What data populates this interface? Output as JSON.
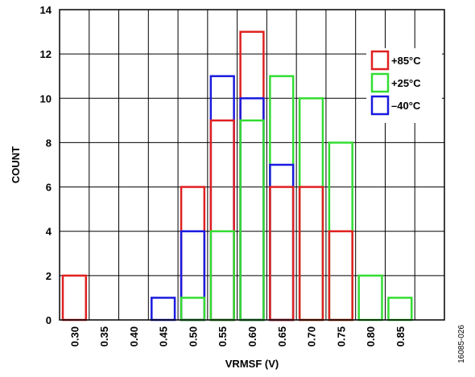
{
  "chart_data": {
    "type": "bar",
    "xlabel": "VRMSF (V)",
    "ylabel": "COUNT",
    "ylim": [
      0,
      14
    ],
    "y_ticks": [
      0,
      2,
      4,
      6,
      8,
      10,
      12,
      14
    ],
    "categories": [
      "0.30",
      "0.35",
      "0.40",
      "0.45",
      "0.50",
      "0.55",
      "0.60",
      "0.65",
      "0.70",
      "0.75",
      "0.80",
      "0.85"
    ],
    "grid": true,
    "legend_position": "top-right",
    "series": [
      {
        "name": "+85°C",
        "color": "#e02020",
        "values": [
          2,
          0,
          0,
          0,
          6,
          9,
          13,
          6,
          6,
          4,
          0,
          0
        ]
      },
      {
        "name": "+25°C",
        "color": "#33dd33",
        "values": [
          0,
          0,
          0,
          0,
          1,
          4,
          9,
          11,
          10,
          8,
          2,
          1
        ]
      },
      {
        "name": "–40°C",
        "color": "#1a1ae0",
        "values": [
          0,
          0,
          0,
          1,
          4,
          11,
          10,
          7,
          0,
          0,
          0,
          0
        ]
      }
    ]
  },
  "figure_id": "16085-026"
}
